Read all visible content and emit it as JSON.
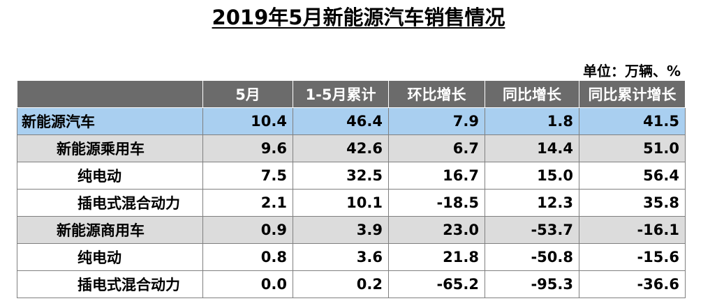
{
  "title": "2019年5月新能源汽车销售情况",
  "unit": "单位：万辆、%",
  "headers": [
    "",
    "5月",
    "1-5月累计",
    "环比增长",
    "同比增长",
    "同比累计增长"
  ],
  "rows": [
    {
      "label": "新能源汽车",
      "level": 0,
      "values": [
        "10.4",
        "46.4",
        "7.9",
        "1.8",
        "41.5"
      ]
    },
    {
      "label": "新能源乘用车",
      "level": 1,
      "values": [
        "9.6",
        "42.6",
        "6.7",
        "14.4",
        "51.0"
      ]
    },
    {
      "label": "纯电动",
      "level": 2,
      "values": [
        "7.5",
        "32.5",
        "16.7",
        "15.0",
        "56.4"
      ]
    },
    {
      "label": "插电式混合动力",
      "level": 2,
      "values": [
        "2.1",
        "10.1",
        "-18.5",
        "12.3",
        "35.8"
      ]
    },
    {
      "label": "新能源商用车",
      "level": 1,
      "values": [
        "0.9",
        "3.9",
        "23.0",
        "-53.7",
        "-16.1"
      ]
    },
    {
      "label": "纯电动",
      "level": 2,
      "values": [
        "0.8",
        "3.6",
        "21.8",
        "-50.8",
        "-15.6"
      ]
    },
    {
      "label": "插电式混合动力",
      "level": 2,
      "values": [
        "0.0",
        "0.2",
        "-65.2",
        "-95.3",
        "-36.6"
      ]
    }
  ],
  "colors": {
    "header_bg": "#6b6b6b",
    "total_row": "#a9cff0",
    "subtotal_row": "#dcdcdc",
    "border": "#7f7f7f"
  }
}
